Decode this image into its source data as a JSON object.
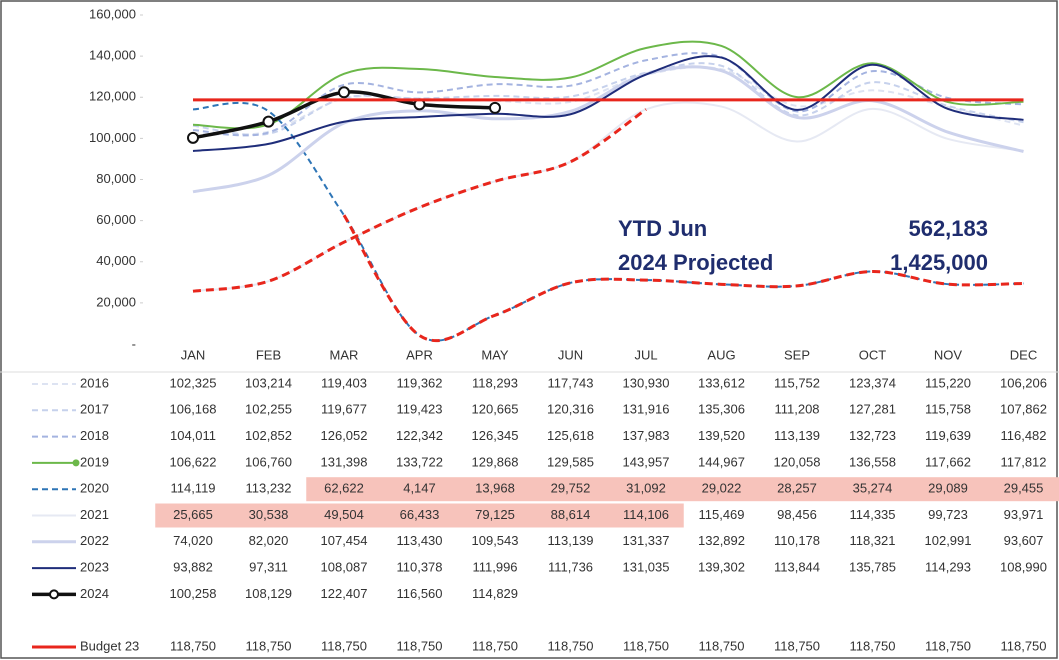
{
  "chart_data": {
    "type": "line",
    "categories": [
      "JAN",
      "FEB",
      "MAR",
      "APR",
      "MAY",
      "JUN",
      "JUL",
      "AUG",
      "SEP",
      "OCT",
      "NOV",
      "DEC"
    ],
    "ylim": [
      0,
      160000
    ],
    "yticks": [
      {
        "value": 20000,
        "label": "20,000"
      },
      {
        "value": 40000,
        "label": "40,000"
      },
      {
        "value": 60000,
        "label": "60,000"
      },
      {
        "value": 80000,
        "label": "80,000"
      },
      {
        "value": 100000,
        "label": "100,000"
      },
      {
        "value": 120000,
        "label": "120,000"
      },
      {
        "value": 140000,
        "label": "140,000"
      },
      {
        "value": 160000,
        "label": "160,000"
      }
    ],
    "annotations": [
      "YTD Jun",
      "562,183",
      "2024 Projected",
      "1,425,000"
    ],
    "series": [
      {
        "name": "2016",
        "color": "#dde3f2",
        "dash": true,
        "values": [
          102325,
          103214,
          119403,
          119362,
          118293,
          117743,
          130930,
          133612,
          115752,
          123374,
          115220,
          106206
        ],
        "value_labels": [
          "102,325",
          "103,214",
          "119,403",
          "119,362",
          "118,293",
          "117,743",
          "130,930",
          "133,612",
          "115,752",
          "123,374",
          "115,220",
          "106,206"
        ]
      },
      {
        "name": "2017",
        "color": "#c6d1ec",
        "dash": true,
        "values": [
          106168,
          102255,
          119677,
          119423,
          120665,
          120316,
          131916,
          135306,
          111208,
          127281,
          115758,
          107862
        ],
        "value_labels": [
          "106,168",
          "102,255",
          "119,677",
          "119,423",
          "120,665",
          "120,316",
          "131,916",
          "135,306",
          "111,208",
          "127,281",
          "115,758",
          "107,862"
        ]
      },
      {
        "name": "2018",
        "color": "#a4b3e0",
        "dash": true,
        "values": [
          104011,
          102852,
          126052,
          122342,
          126345,
          125618,
          137983,
          139520,
          113139,
          132723,
          119639,
          116482
        ],
        "value_labels": [
          "104,011",
          "102,852",
          "126,052",
          "122,342",
          "126,345",
          "125,618",
          "137,983",
          "139,520",
          "113,139",
          "132,723",
          "119,639",
          "116,482"
        ]
      },
      {
        "name": "2019",
        "color": "#6cb84a",
        "dash": false,
        "values": [
          106622,
          106760,
          131398,
          133722,
          129868,
          129585,
          143957,
          144967,
          120058,
          136558,
          117662,
          117812
        ],
        "value_labels": [
          "106,622",
          "106,760",
          "131,398",
          "133,722",
          "129,868",
          "129,585",
          "143,957",
          "144,967",
          "120,058",
          "136,558",
          "117,662",
          "117,812"
        ]
      },
      {
        "name": "2020",
        "color": "#2e75b6",
        "dash": true,
        "values": [
          114119,
          113232,
          62622,
          4147,
          13968,
          29752,
          31092,
          29022,
          28257,
          35274,
          29089,
          29455
        ],
        "value_labels": [
          "114,119",
          "113,232",
          "62,622",
          "4,147",
          "13,968",
          "29,752",
          "31,092",
          "29,022",
          "28,257",
          "35,274",
          "29,089",
          "29,455"
        ]
      },
      {
        "name": "2021",
        "color": "#e6e9f3",
        "dash": false,
        "values": [
          25665,
          30538,
          49504,
          66433,
          79125,
          88614,
          114106,
          115469,
          98456,
          114335,
          99723,
          93971
        ],
        "value_labels": [
          "25,665",
          "30,538",
          "49,504",
          "66,433",
          "79,125",
          "88,614",
          "114,106",
          "115,469",
          "98,456",
          "114,335",
          "99,723",
          "93,971"
        ]
      },
      {
        "name": "2022",
        "color": "#ccd2ec",
        "dash": false,
        "values": [
          74020,
          82020,
          107454,
          113430,
          109543,
          113139,
          131337,
          132892,
          110178,
          118321,
          102991,
          93607
        ],
        "value_labels": [
          "74,020",
          "82,020",
          "107,454",
          "113,430",
          "109,543",
          "113,139",
          "131,337",
          "132,892",
          "110,178",
          "118,321",
          "102,991",
          "93,607"
        ]
      },
      {
        "name": "2023",
        "color": "#1f2d7a",
        "dash": false,
        "values": [
          93882,
          97311,
          108087,
          110378,
          111996,
          111736,
          131035,
          139302,
          113844,
          135785,
          114293,
          108990
        ],
        "value_labels": [
          "93,882",
          "97,311",
          "108,087",
          "110,378",
          "111,996",
          "111,736",
          "131,035",
          "139,302",
          "113,844",
          "135,785",
          "114,293",
          "108,990"
        ]
      },
      {
        "name": "2024",
        "color": "#111111",
        "dash": false,
        "markers": true,
        "values": [
          100258,
          108129,
          122407,
          116560,
          114829,
          null,
          null,
          null,
          null,
          null,
          null,
          null
        ],
        "value_labels": [
          "100,258",
          "108,129",
          "122,407",
          "116,560",
          "114,829",
          null,
          null,
          null,
          null,
          null,
          null,
          null
        ]
      },
      {
        "name": "Budget 23",
        "color": "#e8261c",
        "dash": false,
        "values": [
          118750,
          118750,
          118750,
          118750,
          118750,
          118750,
          118750,
          118750,
          118750,
          118750,
          118750,
          118750
        ],
        "value_labels": [
          "118,750",
          "118,750",
          "118,750",
          "118,750",
          "118,750",
          "118,750",
          "118,750",
          "118,750",
          "118,750",
          "118,750",
          "118,750",
          "118,750"
        ]
      }
    ]
  }
}
